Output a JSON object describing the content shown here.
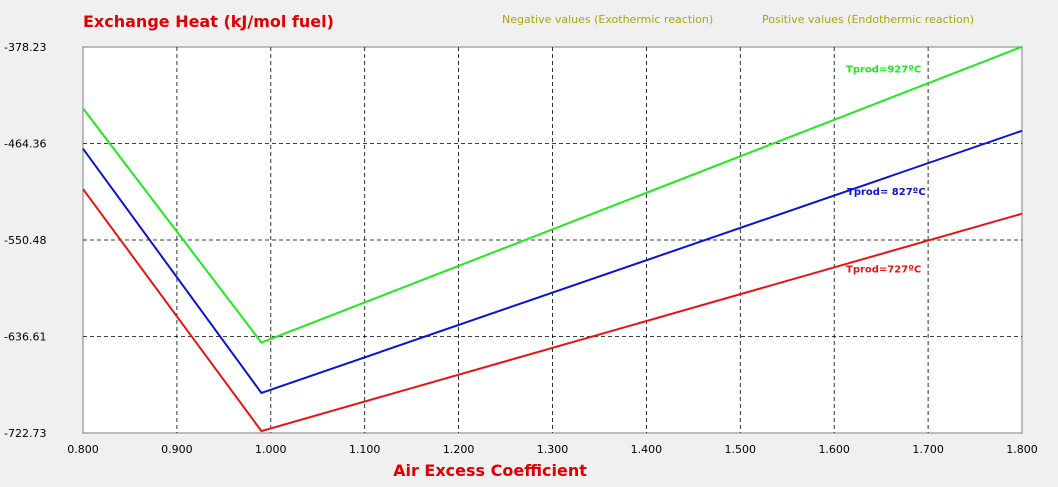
{
  "chart_data": {
    "type": "line",
    "title": "Exchange Heat (kJ/mol fuel)",
    "xlabel": "Air Excess Coefficient",
    "ylabel": "",
    "legend_notes": [
      "Negative values (Exothermic reaction)",
      "Positive values (Endothermic reaction)"
    ],
    "xlim": [
      0.8,
      1.8
    ],
    "ylim": [
      -722.73,
      -378.23
    ],
    "x_ticks": [
      "0.800",
      "0.900",
      "1.000",
      "1.100",
      "1.200",
      "1.300",
      "1.400",
      "1.500",
      "1.600",
      "1.700",
      "1.800"
    ],
    "y_ticks": [
      "-378.23",
      "-464.36",
      "-550.48",
      "-636.61",
      "-722.73"
    ],
    "grid": true,
    "series": [
      {
        "name": "Tprod=927ºC",
        "color": "#1eea1e",
        "x": [
          0.8,
          0.99,
          1.8
        ],
        "y": [
          -433,
          -642,
          -378
        ]
      },
      {
        "name": "Tprod= 827ºC",
        "color": "#0a14d2",
        "x": [
          0.8,
          0.99,
          1.8
        ],
        "y": [
          -469,
          -687,
          -453
        ]
      },
      {
        "name": "Tprod=727ºC",
        "color": "#e81414",
        "x": [
          0.8,
          0.99,
          1.8
        ],
        "y": [
          -505,
          -721,
          -527
        ]
      }
    ]
  },
  "colors": {
    "title": "#e00000",
    "legend_notes": "#a8a800",
    "plot_bg": "#ffffff",
    "page_bg": "#f0f0f0"
  }
}
